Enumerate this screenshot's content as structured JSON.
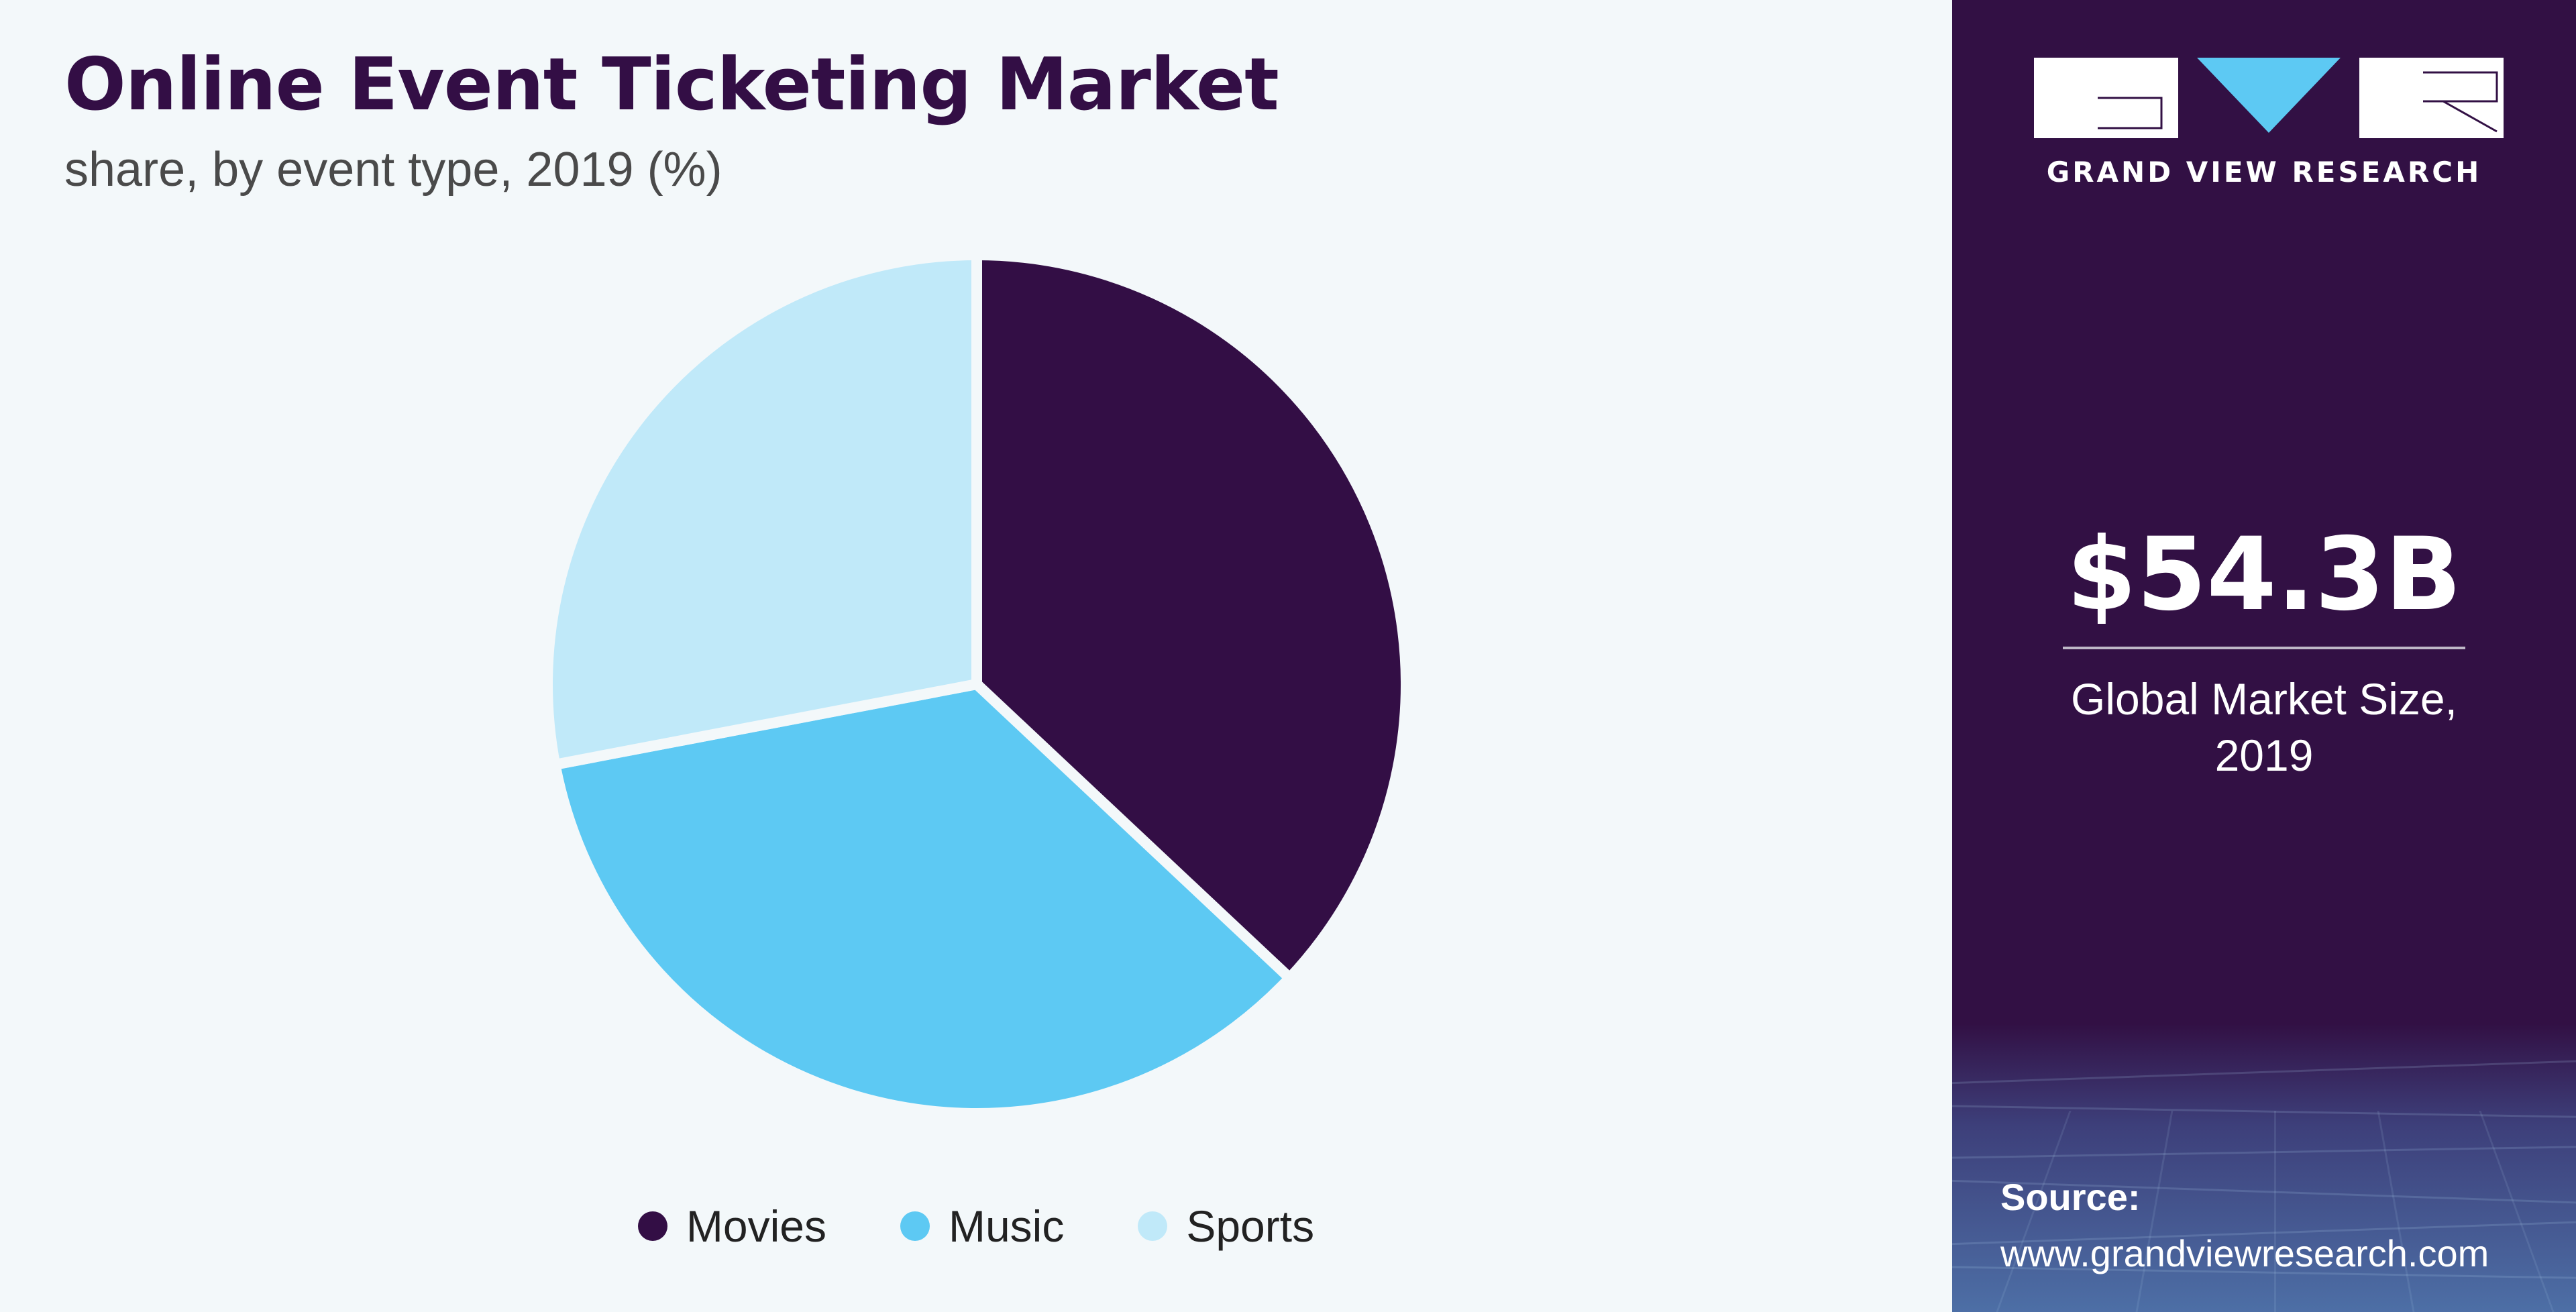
{
  "header": {
    "title": "Online Event Ticketing Market",
    "subtitle": "share, by event type, 2019 (%)"
  },
  "colors": {
    "movies": "#330e45",
    "music": "#5dc9f3",
    "sports": "#c0e9f9",
    "panel": "#321044",
    "background": "#f3f8fa"
  },
  "chart_data": {
    "type": "pie",
    "title": "Online Event Ticketing Market",
    "subtitle": "share, by event type, 2019 (%)",
    "categories": [
      "Movies",
      "Music",
      "Sports"
    ],
    "values": [
      37,
      35,
      28
    ],
    "colors": [
      "#330e45",
      "#5dc9f3",
      "#c0e9f9"
    ],
    "start_angle_deg": 0,
    "direction": "clockwise",
    "legend_position": "bottom",
    "data_labels_shown": false
  },
  "side_panel": {
    "logo_icon": "gvr-logo-icon",
    "brand_text": "GRAND VIEW RESEARCH",
    "market_value": "$54.3B",
    "market_caption_line1": "Global Market Size,",
    "market_caption_line2": "2019",
    "source_label": "Source:",
    "source_url": "www.grandviewresearch.com"
  }
}
